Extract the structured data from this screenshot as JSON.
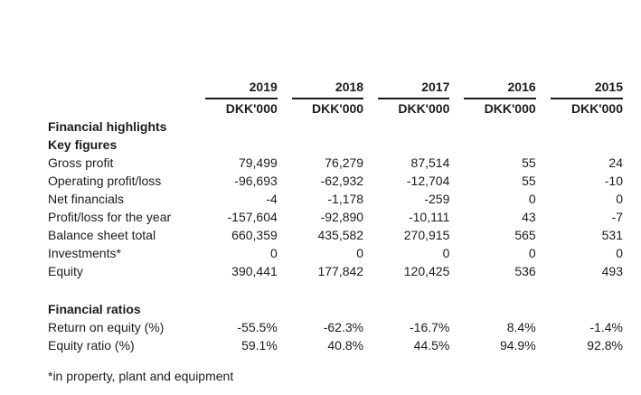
{
  "page": {
    "background_color": "#ffffff",
    "text_color": "#1d1b1b",
    "rule_color": "#1a1a1a"
  },
  "table": {
    "unit_label": "DKK'000",
    "years": [
      "2019",
      "2018",
      "2017",
      "2016",
      "2015"
    ],
    "rows": [
      {
        "type": "section",
        "label": "Financial highlights"
      },
      {
        "type": "section",
        "label": "Key figures"
      },
      {
        "type": "data",
        "label": "Gross profit",
        "values": [
          "79,499",
          "76,279",
          "87,514",
          "55",
          "24"
        ]
      },
      {
        "type": "data",
        "label": "Operating profit/loss",
        "values": [
          "-96,693",
          "-62,932",
          "-12,704",
          "55",
          "-10"
        ]
      },
      {
        "type": "data",
        "label": "Net financials",
        "values": [
          "-4",
          "-1,178",
          "-259",
          "0",
          "0"
        ]
      },
      {
        "type": "data",
        "label": "Profit/loss for the year",
        "values": [
          "-157,604",
          "-92,890",
          "-10,111",
          "43",
          "-7"
        ]
      },
      {
        "type": "data",
        "label": "Balance sheet total",
        "values": [
          "660,359",
          "435,582",
          "270,915",
          "565",
          "531"
        ]
      },
      {
        "type": "data",
        "label": "Investments*",
        "values": [
          "0",
          "0",
          "0",
          "0",
          "0"
        ]
      },
      {
        "type": "data",
        "label": "Equity",
        "values": [
          "390,441",
          "177,842",
          "120,425",
          "536",
          "493"
        ]
      },
      {
        "type": "section",
        "label": "Financial ratios"
      },
      {
        "type": "data",
        "label": "Return on equity (%)",
        "values": [
          "-55.5%",
          "-62.3%",
          "-16.7%",
          "8.4%",
          "-1.4%"
        ]
      },
      {
        "type": "data",
        "label": "Equity ratio (%)",
        "values": [
          "59.1%",
          "40.8%",
          "44.5%",
          "94.9%",
          "92.8%"
        ]
      }
    ],
    "footnote": "*in property, plant and equipment"
  }
}
